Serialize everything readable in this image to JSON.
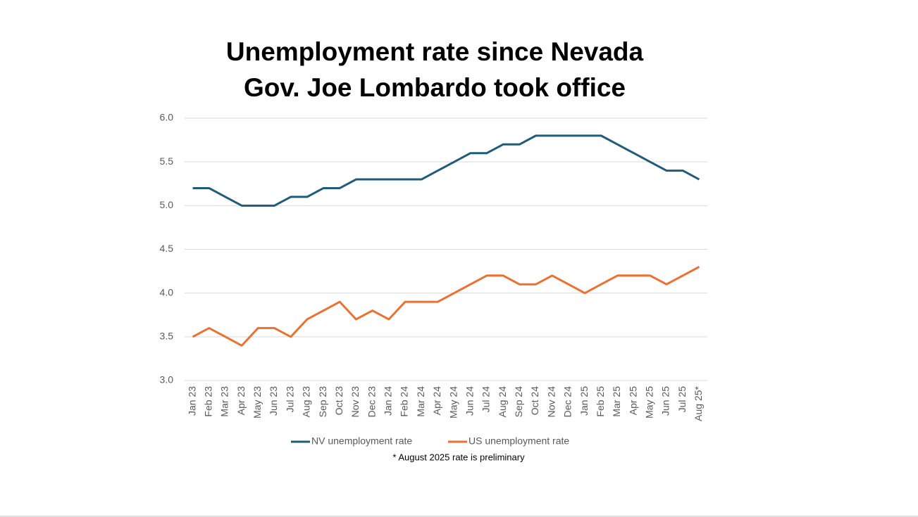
{
  "chart_data": {
    "type": "line",
    "title": "Unemployment rate since Nevada Gov. Joe Lombardo took office",
    "categories": [
      "Jan 23",
      "Feb 23",
      "Mar 23",
      "Apr 23",
      "May 23",
      "Jun 23",
      "Jul 23",
      "Aug 23",
      "Sep 23",
      "Oct 23",
      "Nov 23",
      "Dec 23",
      "Jan 24",
      "Feb 24",
      "Mar 24",
      "Apr 24",
      "May 24",
      "Jun 24",
      "Jul 24",
      "Aug 24",
      "Sep 24",
      "Oct 24",
      "Nov 24",
      "Dec 24",
      "Jan 25",
      "Feb 25",
      "Mar 25",
      "Apr 25",
      "May 25",
      "Jun 25",
      "Jul 25",
      "Aug 25*"
    ],
    "series": [
      {
        "name": "NV unemployment rate",
        "color": "#1f5c7a",
        "values": [
          5.2,
          5.2,
          5.1,
          5.0,
          5.0,
          5.0,
          5.1,
          5.1,
          5.2,
          5.2,
          5.3,
          5.3,
          5.3,
          5.3,
          5.3,
          5.4,
          5.5,
          5.6,
          5.6,
          5.7,
          5.7,
          5.8,
          5.8,
          5.8,
          5.8,
          5.8,
          5.7,
          5.6,
          5.5,
          5.4,
          5.4,
          5.3
        ]
      },
      {
        "name": "US unemployment rate",
        "color": "#e97132",
        "values": [
          3.5,
          3.6,
          3.5,
          3.4,
          3.6,
          3.6,
          3.5,
          3.7,
          3.8,
          3.9,
          3.7,
          3.8,
          3.7,
          3.9,
          3.9,
          3.9,
          4.0,
          4.1,
          4.2,
          4.2,
          4.1,
          4.1,
          4.2,
          4.1,
          4.0,
          4.1,
          4.2,
          4.2,
          4.2,
          4.1,
          4.2,
          4.3
        ]
      }
    ],
    "ylim": [
      3,
      6
    ],
    "yticks": [
      {
        "value": 3,
        "label": "3.0"
      },
      {
        "value": 3.5,
        "label": "3.5"
      },
      {
        "value": 4,
        "label": "4.0"
      },
      {
        "value": 4.5,
        "label": "4.5"
      },
      {
        "value": 5,
        "label": "5.0"
      },
      {
        "value": 5.5,
        "label": "5.5"
      },
      {
        "value": 6,
        "label": "6.0"
      }
    ],
    "grid": true,
    "legend": "bottom",
    "annotation": "* August 2025 rate is preliminary"
  }
}
